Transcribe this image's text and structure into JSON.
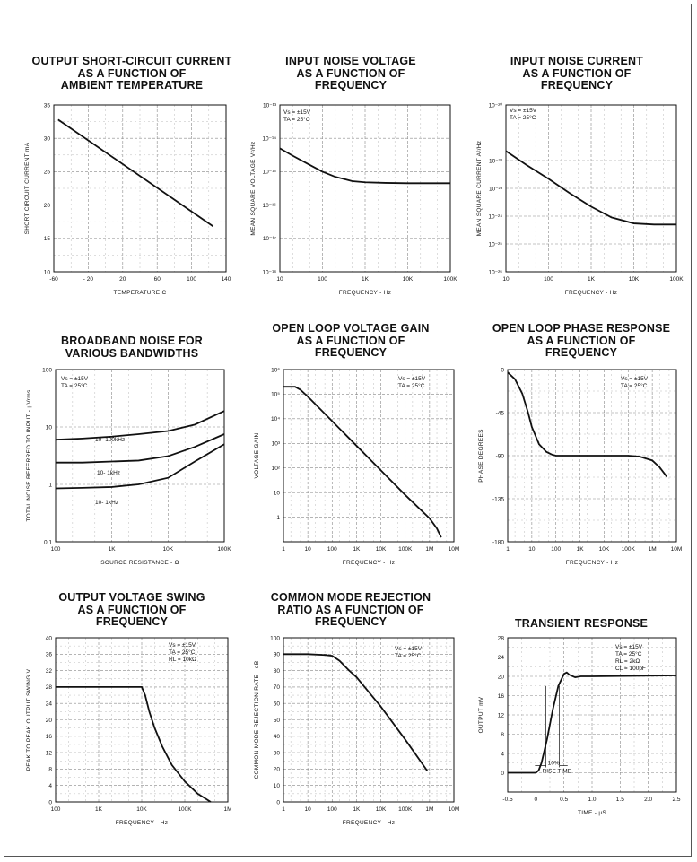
{
  "chart_data": [
    {
      "id": "c1",
      "type": "line",
      "title": [
        "OUTPUT SHORT-CIRCUIT CURRENT",
        "AS A FUNCTION OF",
        "AMBIENT TEMPERATURE"
      ],
      "xlabel": "TEMPERATURE  C",
      "ylabel": "SHORT CIRCUIT CURRENT mA",
      "xscale": "linear",
      "yscale": "linear",
      "xlim": [
        -60,
        140
      ],
      "ylim": [
        10,
        35
      ],
      "xticks": [
        -60,
        -20,
        20,
        60,
        100,
        140
      ],
      "xtick_labels": [
        "-60",
        "- 20",
        "20",
        "60",
        "100",
        "140"
      ],
      "yticks": [
        10,
        15,
        20,
        25,
        30,
        35
      ],
      "ytick_labels": [
        "10",
        "15",
        "20",
        "25",
        "30",
        "35"
      ],
      "grid": true,
      "notes": [],
      "series": [
        {
          "x": [
            -55,
            125
          ],
          "y": [
            32.8,
            16.8
          ]
        }
      ]
    },
    {
      "id": "c2",
      "type": "line",
      "title": [
        "INPUT NOISE VOLTAGE",
        "AS A FUNCTION OF",
        "FREQUENCY"
      ],
      "xlabel": "FREQUENCY - Hz",
      "ylabel": "MEAN SQUARE VOLTAGE   V²/Hz",
      "xscale": "log",
      "yscale": "log",
      "xlim": [
        10,
        100000
      ],
      "ylim": [
        1e-18,
        1e-13
      ],
      "xticks": [
        10,
        100,
        1000,
        10000,
        100000
      ],
      "xtick_labels": [
        "10",
        "100",
        "1K",
        "10K",
        "100K"
      ],
      "yticks": [
        1e-18,
        1e-17,
        1e-16,
        1e-15,
        1e-14,
        1e-13
      ],
      "ytick_labels": [
        "10⁻¹⁸",
        "10⁻¹⁷",
        "10⁻¹⁶",
        "10⁻¹⁵",
        "10⁻¹⁴",
        "10⁻¹³"
      ],
      "grid": true,
      "notes": [
        "Vs = ±15V",
        "TA = 25°C"
      ],
      "series": [
        {
          "x": [
            10,
            20,
            50,
            100,
            200,
            500,
            1000,
            3000,
            10000,
            100000
          ],
          "y": [
            5e-15,
            3e-15,
            1.6e-15,
            1e-15,
            7e-16,
            5.2e-16,
            4.8e-16,
            4.6e-16,
            4.5e-16,
            4.5e-16
          ]
        }
      ]
    },
    {
      "id": "c3",
      "type": "line",
      "title": [
        "INPUT NOISE CURRENT",
        "AS A FUNCTION OF",
        "FREQUENCY"
      ],
      "xlabel": "FREQUENCY - Hz",
      "ylabel": "MEAN SQUARE CURRENT   A²/Hz",
      "xscale": "log",
      "yscale": "log",
      "xlim": [
        10,
        100000
      ],
      "ylim": [
        1e-26,
        1e-20
      ],
      "xticks": [
        10,
        100,
        1000,
        10000,
        100000
      ],
      "xtick_labels": [
        "10",
        "100",
        "1K",
        "10K",
        "100K"
      ],
      "yticks": [
        1e-26,
        1e-25,
        1e-24,
        1e-23,
        1e-22,
        1e-20
      ],
      "ytick_labels": [
        "10⁻²⁶",
        "10⁻²⁵",
        "10⁻²⁴",
        "10⁻²³",
        "10⁻²²",
        "10⁻²⁰"
      ],
      "grid": true,
      "notes": [
        "Vs = ±15V",
        "TA = 25°C"
      ],
      "series": [
        {
          "x": [
            10,
            30,
            100,
            300,
            1000,
            3000,
            10000,
            30000,
            100000
          ],
          "y": [
            2.2e-22,
            7e-23,
            2.2e-23,
            7e-24,
            2.2e-24,
            9e-25,
            5.5e-25,
            5e-25,
            5e-25
          ]
        }
      ]
    },
    {
      "id": "c4",
      "type": "line",
      "title": [
        "BROADBAND NOISE FOR",
        "VARIOUS BANDWIDTHS"
      ],
      "xlabel": "SOURCE RESISTANCE - Ω",
      "ylabel": "TOTAL NOISE REFERRED TO INPUT - µVrms",
      "xscale": "log",
      "yscale": "log",
      "xlim": [
        100,
        100000
      ],
      "ylim": [
        0.1,
        100
      ],
      "xticks": [
        100,
        1000,
        10000,
        100000
      ],
      "xtick_labels": [
        "100",
        "1K",
        "10K",
        "100K"
      ],
      "yticks": [
        0.1,
        1,
        10,
        100
      ],
      "ytick_labels": [
        "0.1",
        "1",
        "10",
        "100"
      ],
      "grid": true,
      "notes": [
        "Vs = ±15V",
        "TA = 25°C"
      ],
      "series": [
        {
          "name": "10- 100kHz",
          "x": [
            100,
            300,
            1000,
            3000,
            10000,
            30000,
            100000
          ],
          "y": [
            6,
            6.3,
            6.8,
            7.5,
            8.5,
            11,
            19
          ]
        },
        {
          "name": "10- 1kHz",
          "x": [
            100,
            300,
            1000,
            3000,
            10000,
            30000,
            100000
          ],
          "y": [
            2.4,
            2.4,
            2.5,
            2.6,
            3.1,
            4.5,
            7.5
          ]
        },
        {
          "name": "10- 1kHz",
          "x": [
            100,
            300,
            1000,
            3000,
            10000,
            30000,
            100000
          ],
          "y": [
            0.85,
            0.87,
            0.9,
            1.0,
            1.3,
            2.5,
            5
          ]
        }
      ]
    },
    {
      "id": "c5",
      "type": "line",
      "title": [
        "OPEN LOOP VOLTAGE GAIN",
        "AS A FUNCTION OF",
        "FREQUENCY"
      ],
      "xlabel": "FREQUENCY - Hz",
      "ylabel": "VOLTAGE GAIN",
      "xscale": "log",
      "yscale": "log",
      "xlim": [
        1,
        10000000
      ],
      "ylim": [
        0.1,
        1000000
      ],
      "xticks": [
        1,
        10,
        100,
        1000,
        10000,
        100000,
        1000000,
        10000000
      ],
      "xtick_labels": [
        "1",
        "10",
        "100",
        "1K",
        "10K",
        "100K",
        "1M",
        "10M"
      ],
      "yticks": [
        1,
        10,
        100,
        1000,
        10000,
        100000,
        1000000
      ],
      "ytick_labels": [
        "1",
        "10",
        "10²",
        "10³",
        "10⁴",
        "10⁵",
        "10⁶"
      ],
      "grid": true,
      "notes": [
        "Vs = ±15V",
        "TA = 25°C"
      ],
      "series": [
        {
          "x": [
            1,
            3,
            5,
            10,
            100,
            1000,
            10000,
            100000,
            1000000,
            2000000,
            3000000
          ],
          "y": [
            200000,
            200000,
            150000,
            80000,
            8000,
            800,
            80,
            8,
            0.9,
            0.35,
            0.15
          ]
        }
      ]
    },
    {
      "id": "c6",
      "type": "line",
      "title": [
        "OPEN LOOP PHASE RESPONSE",
        "AS A FUNCTION OF",
        "FREQUENCY"
      ],
      "xlabel": "FREQUENCY - Hz",
      "ylabel": "PHASE DEGREES",
      "xscale": "log",
      "yscale": "linear",
      "xlim": [
        1,
        10000000
      ],
      "ylim": [
        -180,
        0
      ],
      "xticks": [
        1,
        10,
        100,
        1000,
        10000,
        100000,
        1000000,
        10000000
      ],
      "xtick_labels": [
        "1",
        "10",
        "100",
        "1K",
        "10K",
        "100K",
        "1M",
        "10M"
      ],
      "yticks": [
        0,
        -45,
        -90,
        -135,
        -180
      ],
      "ytick_labels": [
        "0",
        "-45",
        "-90",
        "-135",
        "-180"
      ],
      "grid": true,
      "notes": [
        "Vs = ±15V",
        "TA = 25°C"
      ],
      "series": [
        {
          "x": [
            1,
            2,
            4,
            7,
            10,
            20,
            40,
            70,
            100,
            300,
            1000,
            10000,
            100000,
            300000,
            1000000,
            2000000,
            4000000
          ],
          "y": [
            -3,
            -10,
            -25,
            -45,
            -60,
            -78,
            -86,
            -89,
            -90,
            -90,
            -90,
            -90,
            -90,
            -91,
            -95,
            -102,
            -112
          ]
        }
      ]
    },
    {
      "id": "c7",
      "type": "line",
      "title": [
        "OUTPUT VOLTAGE SWING",
        "AS A FUNCTION OF",
        "FREQUENCY"
      ],
      "xlabel": "FREQUENCY - Hz",
      "ylabel": "PEAK TO PEAK OUTPUT SWING  V",
      "xscale": "log",
      "yscale": "linear",
      "xlim": [
        100,
        1000000
      ],
      "ylim": [
        0,
        40
      ],
      "xticks": [
        100,
        1000,
        10000,
        100000,
        1000000
      ],
      "xtick_labels": [
        "100",
        "1K",
        "10K",
        "100K",
        "1M"
      ],
      "yticks": [
        0,
        4,
        8,
        12,
        16,
        20,
        24,
        28,
        32,
        36,
        40
      ],
      "ytick_labels": [
        "0",
        "4",
        "8",
        "12",
        "16",
        "20",
        "24",
        "28",
        "32",
        "36",
        "40"
      ],
      "grid": true,
      "notes": [
        "Vs = ±15V",
        "TA = 25°C",
        "RL = 10kΩ"
      ],
      "series": [
        {
          "x": [
            100,
            1000,
            10000,
            12000,
            15000,
            20000,
            30000,
            50000,
            100000,
            200000,
            400000
          ],
          "y": [
            28,
            28,
            28,
            26,
            22,
            18,
            13.5,
            9,
            5,
            2,
            0
          ]
        }
      ]
    },
    {
      "id": "c8",
      "type": "line",
      "title": [
        "COMMON MODE REJECTION",
        "RATIO AS A FUNCTION OF",
        "FREQUENCY"
      ],
      "xlabel": "FREQUENCY - Hz",
      "ylabel": "COMMON MODE REJECTION RATE - dB",
      "xscale": "log",
      "yscale": "linear",
      "xlim": [
        1,
        10000000
      ],
      "ylim": [
        0,
        100
      ],
      "xticks": [
        1,
        10,
        100,
        1000,
        10000,
        100000,
        1000000,
        10000000
      ],
      "xtick_labels": [
        "1",
        "10",
        "100",
        "1K",
        "10K",
        "100K",
        "1M",
        "10M"
      ],
      "yticks": [
        0,
        10,
        20,
        30,
        40,
        50,
        60,
        70,
        80,
        90,
        100
      ],
      "ytick_labels": [
        "0",
        "10",
        "20",
        "30",
        "40",
        "50",
        "60",
        "70",
        "80",
        "90",
        "100"
      ],
      "grid": true,
      "notes": [
        "Vs = ±15V",
        "TA = 25°C"
      ],
      "series": [
        {
          "x": [
            1,
            10,
            50,
            100,
            200,
            500,
            1000,
            10000,
            100000,
            800000
          ],
          "y": [
            90,
            90,
            89.5,
            89,
            86,
            80,
            76,
            58,
            38,
            19
          ]
        }
      ]
    },
    {
      "id": "c9",
      "type": "line",
      "title": [
        "TRANSIENT RESPONSE"
      ],
      "xlabel": "TIME - µS",
      "ylabel": "OUTPUT mV",
      "xscale": "linear",
      "yscale": "linear",
      "xlim": [
        -0.5,
        2.5
      ],
      "ylim": [
        -4,
        28
      ],
      "xticks": [
        -0.5,
        0,
        0.5,
        1.0,
        1.5,
        2.0,
        2.5
      ],
      "xtick_labels": [
        "-0.5",
        "0",
        "0.5",
        "1.0",
        "1.5",
        "2.0",
        "2.5"
      ],
      "yticks": [
        0,
        4,
        8,
        12,
        16,
        20,
        24,
        28
      ],
      "ytick_labels": [
        "0",
        "4",
        "8",
        "12",
        "16",
        "20",
        "24",
        "28"
      ],
      "grid": true,
      "notes": [
        "Vs = ±15V",
        "TA = 25°C",
        "RL = 2kΩ",
        "CL = 100pF"
      ],
      "annotations": [
        "10%",
        "RISE TIME"
      ],
      "series": [
        {
          "x": [
            -0.5,
            0,
            0.05,
            0.1,
            0.2,
            0.3,
            0.4,
            0.5,
            0.55,
            0.6,
            0.7,
            0.8,
            1.0,
            2.5
          ],
          "y": [
            0,
            0,
            0.5,
            2,
            7,
            13,
            18,
            20.5,
            20.8,
            20.3,
            19.8,
            20,
            20,
            20.2
          ]
        }
      ]
    }
  ]
}
